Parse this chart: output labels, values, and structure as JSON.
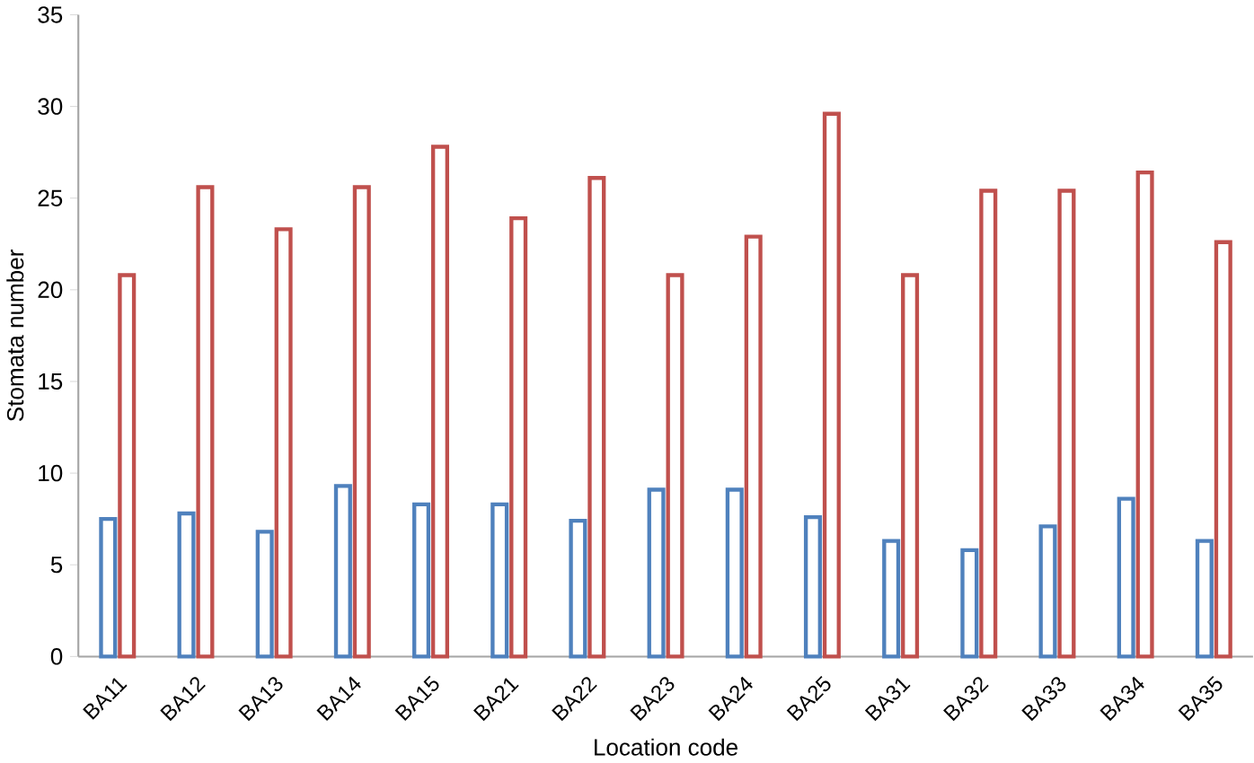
{
  "chart_data": {
    "type": "bar",
    "xlabel": "Location code",
    "ylabel": "Stomata number",
    "categories": [
      "BA11",
      "BA12",
      "BA13",
      "BA14",
      "BA15",
      "BA21",
      "BA22",
      "BA23",
      "BA24",
      "BA25",
      "BA31",
      "BA32",
      "BA33",
      "BA34",
      "BA35"
    ],
    "series": [
      {
        "color": "#4f81bd",
        "values": [
          7.5,
          7.8,
          6.8,
          9.3,
          8.3,
          8.3,
          7.4,
          9.1,
          9.1,
          7.6,
          6.3,
          5.8,
          7.1,
          8.6,
          6.3
        ]
      },
      {
        "color": "#c0504d",
        "values": [
          20.8,
          25.6,
          23.3,
          25.6,
          27.8,
          23.9,
          26.1,
          20.8,
          22.9,
          29.6,
          20.8,
          25.4,
          25.4,
          26.4,
          22.6
        ]
      }
    ],
    "ylim": [
      0,
      35
    ],
    "yticks": [
      0,
      5,
      10,
      15,
      20,
      25,
      30,
      35
    ],
    "grid": false
  }
}
